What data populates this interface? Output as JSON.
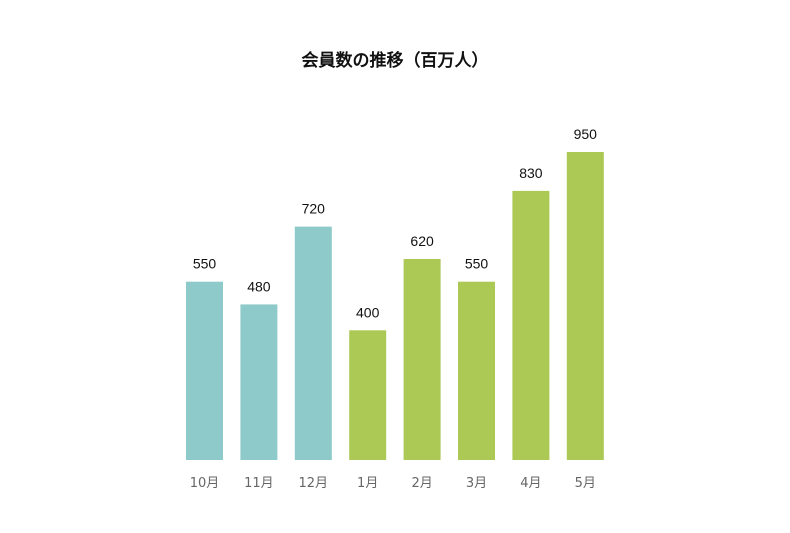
{
  "chart_data": {
    "type": "bar",
    "title": "会員数の推移（百万人）",
    "xlabel": "",
    "ylabel": "",
    "categories": [
      "10月",
      "11月",
      "12月",
      "1月",
      "2月",
      "3月",
      "4月",
      "5月"
    ],
    "values": [
      550,
      480,
      720,
      400,
      620,
      550,
      830,
      950
    ],
    "ylim": [
      0,
      950
    ],
    "grid": false,
    "legend": "none",
    "colors": {
      "teal": "#8ecac9",
      "green": "#acc956"
    },
    "bar_colors": [
      "teal",
      "teal",
      "teal",
      "green",
      "green",
      "green",
      "green",
      "green"
    ]
  }
}
